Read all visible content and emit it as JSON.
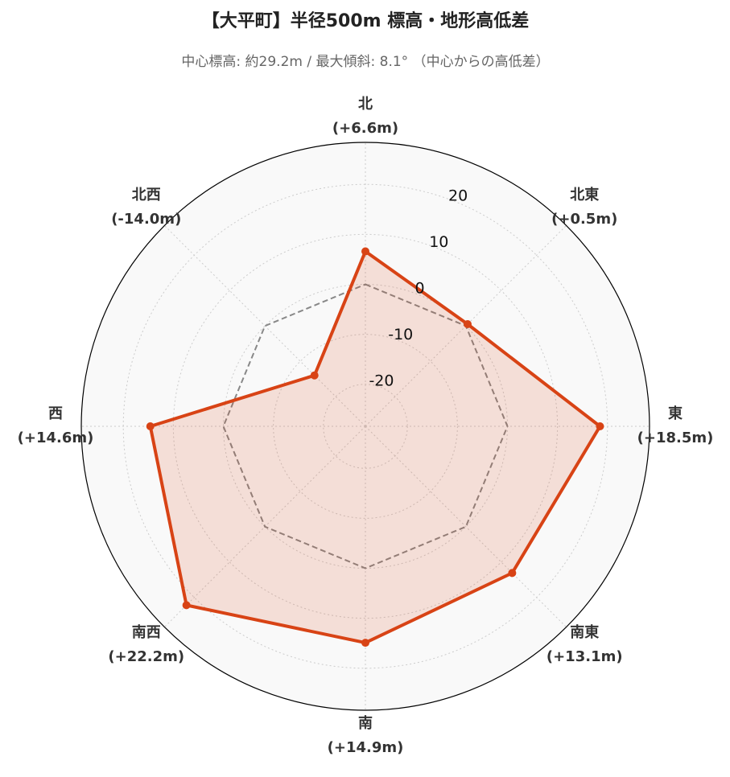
{
  "chart_data": {
    "type": "radar",
    "title": "【大平町】半径500m 標高・地形高低差",
    "subtitle": "中心標高: 約29.2m / 最大傾斜: 8.1°  （中心からの高低差）",
    "categories": [
      "北",
      "北東",
      "東",
      "南東",
      "南",
      "南西",
      "西",
      "北西"
    ],
    "values": [
      6.6,
      0.5,
      18.5,
      13.1,
      14.9,
      22.2,
      14.6,
      -14.0
    ],
    "value_labels": [
      "(+6.6m)",
      "(+0.5m)",
      "(+18.5m)",
      "(+13.1m)",
      "(+14.9m)",
      "(+22.2m)",
      "(+14.6m)",
      "(-14.0m)"
    ],
    "color": "#d84315",
    "ylim": [
      -28.4,
      28.4
    ],
    "yticks": [
      -20,
      -10,
      0,
      10,
      20
    ],
    "reference": 0,
    "grid": true
  }
}
